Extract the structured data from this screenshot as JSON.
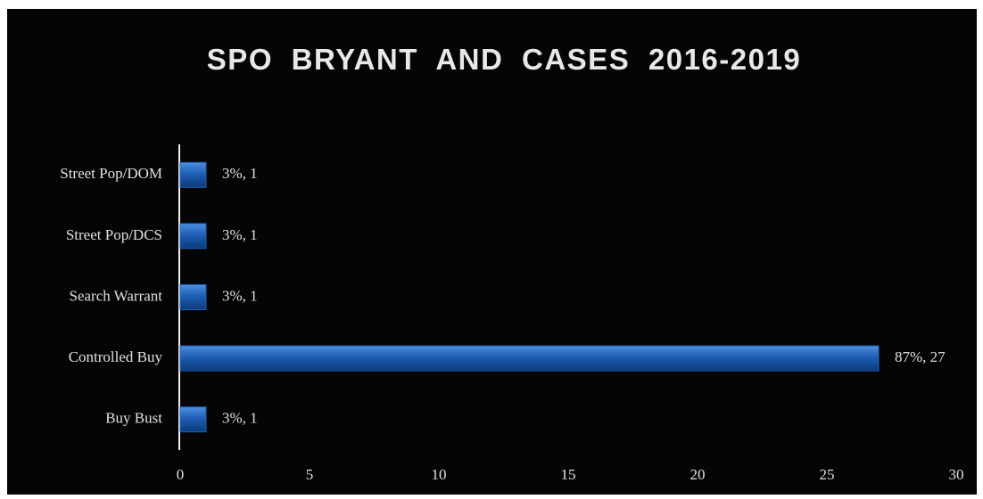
{
  "chart_data": {
    "type": "bar",
    "orientation": "horizontal",
    "title": "SPO BRYANT AND CASES 2016-2019",
    "categories": [
      "Street Pop/DOM",
      "Street Pop/DCS",
      "Search Warrant",
      "Controlled Buy",
      "Buy Bust"
    ],
    "values": [
      1,
      1,
      1,
      27,
      1
    ],
    "value_labels": [
      "3%, 1",
      "3%, 1",
      "3%, 1",
      "87%, 27",
      "3%, 1"
    ],
    "color": "#1f5fb4",
    "xlim": [
      0,
      30
    ],
    "xticks": [
      0,
      5,
      10,
      15,
      20,
      25,
      30
    ],
    "grid": false
  }
}
